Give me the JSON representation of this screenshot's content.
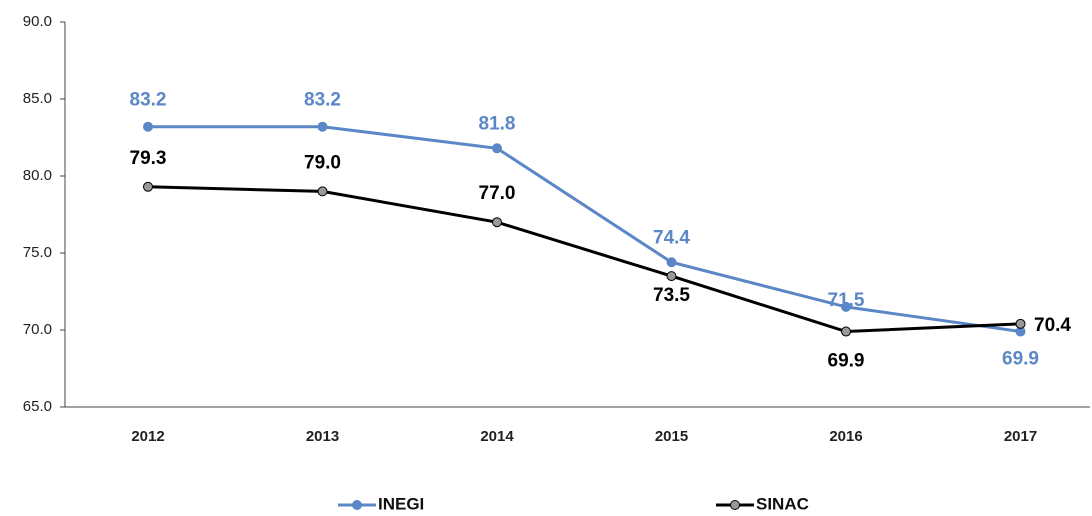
{
  "chart_data": {
    "type": "line",
    "categories": [
      "2012",
      "2013",
      "2014",
      "2015",
      "2016",
      "2017"
    ],
    "series": [
      {
        "name": "INEGI",
        "color": "#5b87c7",
        "marker_color": "#5b87c7",
        "values": [
          83.2,
          83.2,
          81.8,
          74.4,
          71.5,
          69.9
        ]
      },
      {
        "name": "SINAC",
        "color": "#000000",
        "marker_color": "#999999",
        "values": [
          79.3,
          79.0,
          77.0,
          73.5,
          69.9,
          70.4
        ],
        "value_labels": [
          "79.3",
          "79.0",
          "77.0",
          "73.5",
          "69.9",
          "70.4"
        ]
      }
    ],
    "ylim": [
      65,
      90
    ],
    "yticks": [
      {
        "value": 65,
        "label": "65.0"
      },
      {
        "value": 70,
        "label": "70.0"
      },
      {
        "value": 75,
        "label": "75.0"
      },
      {
        "value": 80,
        "label": "80.0"
      },
      {
        "value": 85,
        "label": "85.0"
      },
      {
        "value": 90,
        "label": "90.0"
      }
    ],
    "grid": false,
    "legend": "bottom"
  }
}
